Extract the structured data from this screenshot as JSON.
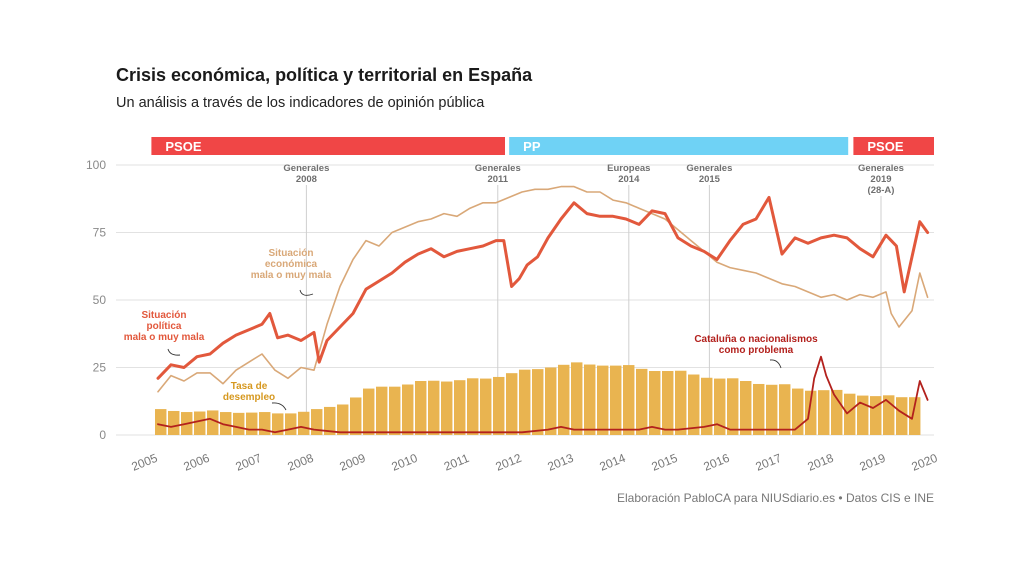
{
  "title": "Crisis económica, política y territorial en España",
  "subtitle": "Un análisis a través de los indicadores de opinión pública",
  "source": "Elaboración PabloCA para NIUSdiario.es • Datos CIS e INE",
  "colors": {
    "psoe": "#f04646",
    "pp": "#6fd2f5",
    "politica": "#e2583c",
    "economica": "#d9a878",
    "paro": "#e9b450",
    "cataluna": "#b3211d",
    "grid": "#e2e2e2",
    "event": "#cfcfcf"
  },
  "governments": [
    {
      "party": "PSOE",
      "start": 2004.95,
      "end": 2011.75,
      "color": "#f04646"
    },
    {
      "party": "PP",
      "start": 2011.83,
      "end": 2018.35,
      "color": "#6fd2f5"
    },
    {
      "party": "PSOE",
      "start": 2018.45,
      "end": 2020.0,
      "color": "#f04646"
    }
  ],
  "events": [
    {
      "lines": [
        "Generales",
        "2008"
      ],
      "x": 2008.2
    },
    {
      "lines": [
        "Generales",
        "2011"
      ],
      "x": 2011.88
    },
    {
      "lines": [
        "Europeas",
        "2014"
      ],
      "x": 2014.4
    },
    {
      "lines": [
        "Generales",
        "2015"
      ],
      "x": 2015.95
    },
    {
      "lines": [
        "Generales",
        "2019",
        "(28-A)"
      ],
      "x": 2019.25
    }
  ],
  "annotations": {
    "economica": [
      "Situación",
      "económica",
      "mala o muy mala"
    ],
    "politica": [
      "Situación",
      "política",
      "mala o muy mala"
    ],
    "paro": [
      "Tasa de",
      "desempleo"
    ],
    "cataluna": [
      "Cataluña o nacionalismos",
      "como problema"
    ]
  },
  "chart_data": {
    "type": "line",
    "title": "Crisis económica, política y territorial en España",
    "xlabel": "",
    "ylabel": "",
    "xlim": [
      2004.8,
      2020.2
    ],
    "ylim": [
      0,
      100
    ],
    "yticks": [
      0,
      25,
      50,
      75,
      100
    ],
    "xticks": [
      2005,
      2006,
      2007,
      2008,
      2009,
      2010,
      2011,
      2012,
      2013,
      2014,
      2015,
      2016,
      2017,
      2018,
      2019,
      2020
    ],
    "grid": true,
    "series": [
      {
        "name": "Situación política mala o muy mala",
        "kind": "line",
        "color": "#e2583c",
        "x": [
          2005.0,
          2005.25,
          2005.5,
          2005.75,
          2006.0,
          2006.25,
          2006.5,
          2006.75,
          2007.0,
          2007.15,
          2007.3,
          2007.5,
          2007.75,
          2008.0,
          2008.1,
          2008.25,
          2008.5,
          2008.75,
          2009.0,
          2009.25,
          2009.5,
          2009.75,
          2010.0,
          2010.25,
          2010.5,
          2010.75,
          2011.0,
          2011.25,
          2011.5,
          2011.65,
          2011.8,
          2011.95,
          2012.1,
          2012.3,
          2012.5,
          2012.75,
          2013.0,
          2013.25,
          2013.5,
          2013.75,
          2014.0,
          2014.25,
          2014.5,
          2014.75,
          2015.0,
          2015.25,
          2015.5,
          2015.75,
          2016.0,
          2016.25,
          2016.5,
          2016.75,
          2017.0,
          2017.25,
          2017.5,
          2017.75,
          2018.0,
          2018.25,
          2018.5,
          2018.75,
          2019.0,
          2019.1,
          2019.2,
          2019.35,
          2019.5,
          2019.65,
          2019.8
        ],
        "values": [
          21,
          26,
          25,
          29,
          30,
          34,
          37,
          39,
          41,
          45,
          36,
          37,
          35,
          38,
          27,
          35,
          40,
          45,
          54,
          57,
          60,
          64,
          67,
          69,
          66,
          68,
          69,
          70,
          72,
          72,
          55,
          58,
          63,
          66,
          73,
          80,
          86,
          82,
          81,
          81,
          80,
          78,
          83,
          82,
          73,
          70,
          68,
          65,
          72,
          78,
          80,
          88,
          67,
          73,
          71,
          73,
          74,
          73,
          69,
          66,
          74,
          72,
          70,
          53,
          66,
          79,
          75
        ]
      },
      {
        "name": "Situación económica mala o muy mala",
        "kind": "line",
        "color": "#d9a878",
        "x": [
          2005.0,
          2005.25,
          2005.5,
          2005.75,
          2006.0,
          2006.25,
          2006.5,
          2006.75,
          2007.0,
          2007.25,
          2007.5,
          2007.75,
          2008.0,
          2008.25,
          2008.5,
          2008.75,
          2009.0,
          2009.25,
          2009.5,
          2009.75,
          2010.0,
          2010.25,
          2010.5,
          2010.75,
          2011.0,
          2011.25,
          2011.5,
          2011.75,
          2012.0,
          2012.25,
          2012.5,
          2012.75,
          2013.0,
          2013.25,
          2013.5,
          2013.75,
          2014.0,
          2014.25,
          2014.5,
          2014.75,
          2015.0,
          2015.25,
          2015.5,
          2015.75,
          2016.0,
          2016.25,
          2016.5,
          2016.75,
          2017.0,
          2017.25,
          2017.5,
          2017.75,
          2018.0,
          2018.25,
          2018.5,
          2018.75,
          2019.0,
          2019.1,
          2019.25,
          2019.5,
          2019.65,
          2019.8
        ],
        "values": [
          16,
          22,
          20,
          23,
          23,
          19,
          24,
          27,
          30,
          24,
          21,
          25,
          24,
          41,
          55,
          65,
          72,
          70,
          75,
          77,
          79,
          80,
          82,
          81,
          84,
          86,
          86,
          88,
          90,
          91,
          91,
          92,
          92,
          90,
          90,
          87,
          86,
          84,
          82,
          80,
          76,
          72,
          68,
          64,
          62,
          61,
          60,
          58,
          56,
          55,
          53,
          51,
          52,
          50,
          52,
          51,
          53,
          45,
          40,
          46,
          60,
          51
        ]
      },
      {
        "name": "Cataluña o nacionalismos como problema",
        "kind": "line",
        "color": "#b3211d",
        "x": [
          2005.0,
          2005.25,
          2005.5,
          2005.75,
          2006.0,
          2006.25,
          2006.5,
          2006.75,
          2007.0,
          2007.25,
          2007.5,
          2007.75,
          2008.0,
          2008.5,
          2009.0,
          2009.5,
          2010.0,
          2010.5,
          2011.0,
          2011.5,
          2012.0,
          2012.5,
          2012.75,
          2013.0,
          2013.5,
          2014.0,
          2014.25,
          2014.5,
          2014.75,
          2015.0,
          2015.5,
          2015.75,
          2016.0,
          2016.5,
          2017.0,
          2017.25,
          2017.5,
          2017.62,
          2017.75,
          2017.85,
          2018.0,
          2018.25,
          2018.5,
          2018.75,
          2019.0,
          2019.25,
          2019.5,
          2019.65,
          2019.8
        ],
        "values": [
          4,
          3,
          4,
          5,
          6,
          4,
          3,
          2,
          2,
          1,
          2,
          3,
          2,
          1,
          1,
          1,
          1,
          1,
          1,
          1,
          1,
          2,
          3,
          2,
          2,
          2,
          2,
          3,
          2,
          2,
          3,
          4,
          2,
          2,
          2,
          2,
          6,
          21,
          29,
          22,
          15,
          8,
          12,
          10,
          13,
          9,
          6,
          20,
          13
        ]
      },
      {
        "name": "Tasa de desempleo",
        "kind": "bar",
        "color": "#e9b450",
        "x": [
          2005.0,
          2005.25,
          2005.5,
          2005.75,
          2006.0,
          2006.25,
          2006.5,
          2006.75,
          2007.0,
          2007.25,
          2007.5,
          2007.75,
          2008.0,
          2008.25,
          2008.5,
          2008.75,
          2009.0,
          2009.25,
          2009.5,
          2009.75,
          2010.0,
          2010.25,
          2010.5,
          2010.75,
          2011.0,
          2011.25,
          2011.5,
          2011.75,
          2012.0,
          2012.25,
          2012.5,
          2012.75,
          2013.0,
          2013.25,
          2013.5,
          2013.75,
          2014.0,
          2014.25,
          2014.5,
          2014.75,
          2015.0,
          2015.25,
          2015.5,
          2015.75,
          2016.0,
          2016.25,
          2016.5,
          2016.75,
          2017.0,
          2017.25,
          2017.5,
          2017.75,
          2018.0,
          2018.25,
          2018.5,
          2018.75,
          2019.0,
          2019.25,
          2019.5
        ],
        "values": [
          9.6,
          8.9,
          8.5,
          8.7,
          9.1,
          8.5,
          8.2,
          8.3,
          8.5,
          8.0,
          8.0,
          8.6,
          9.6,
          10.4,
          11.3,
          13.9,
          17.2,
          17.9,
          17.9,
          18.7,
          20.0,
          20.1,
          19.8,
          20.3,
          21.0,
          20.9,
          21.5,
          22.9,
          24.2,
          24.4,
          25.0,
          26.0,
          26.9,
          26.1,
          25.7,
          25.7,
          25.9,
          24.5,
          23.7,
          23.7,
          23.8,
          22.4,
          21.2,
          20.9,
          21.0,
          20.0,
          18.9,
          18.6,
          18.8,
          17.2,
          16.4,
          16.6,
          16.7,
          15.3,
          14.6,
          14.4,
          14.7,
          14.0,
          14.0
        ]
      }
    ]
  }
}
